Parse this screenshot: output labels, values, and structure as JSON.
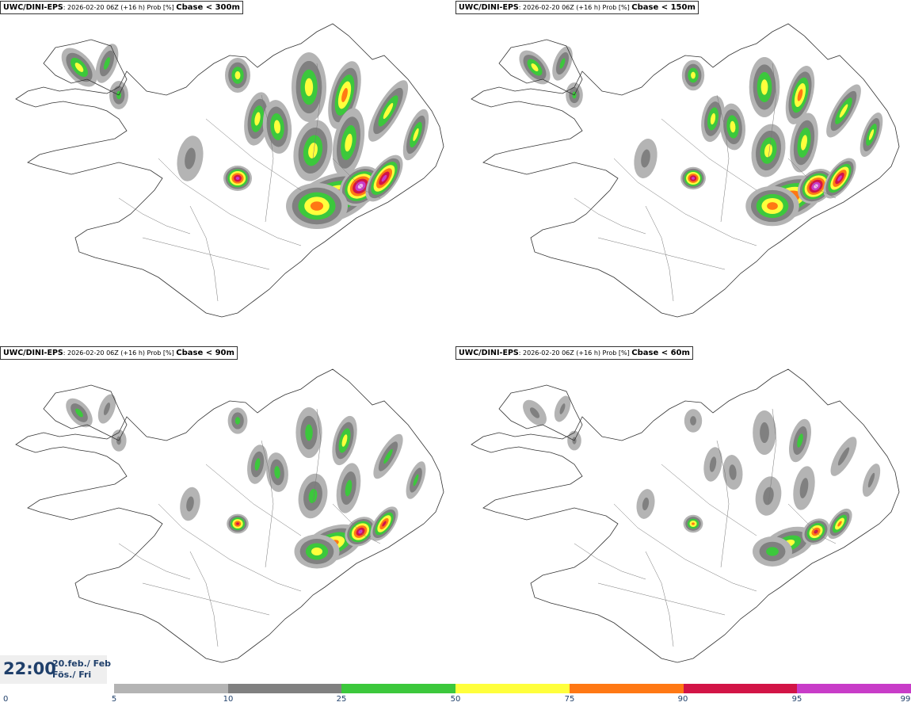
{
  "panels": [
    {
      "model": "UWC/DINI-EPS",
      "run": "2026-02-20 06Z (+16 h) Prob [%]",
      "threshold": "Cbase < 300m"
    },
    {
      "model": "UWC/DINI-EPS",
      "run": "2026-02-20 06Z (+16 h) Prob [%]",
      "threshold": "Cbase < 150m"
    },
    {
      "model": "UWC/DINI-EPS",
      "run": "2026-02-20 06Z (+16 h) Prob [%]",
      "threshold": "Cbase < 90m"
    },
    {
      "model": "UWC/DINI-EPS",
      "run": "2026-02-20 06Z (+16 h) Prob [%]",
      "threshold": "Cbase < 60m"
    }
  ],
  "valid_time": {
    "time": "22:00",
    "date_line1": "20.feb./ Feb",
    "date_line2": "Fös./ Fri"
  },
  "legend": {
    "ticks": [
      "0",
      "5",
      "10",
      "25",
      "50",
      "75",
      "90",
      "95",
      "99"
    ],
    "colors": [
      "#b4b4b4",
      "#808080",
      "#3cc83c",
      "#ffff3c",
      "#ff7814",
      "#d21446",
      "#c83cc8",
      "#f0b4f0"
    ]
  }
}
